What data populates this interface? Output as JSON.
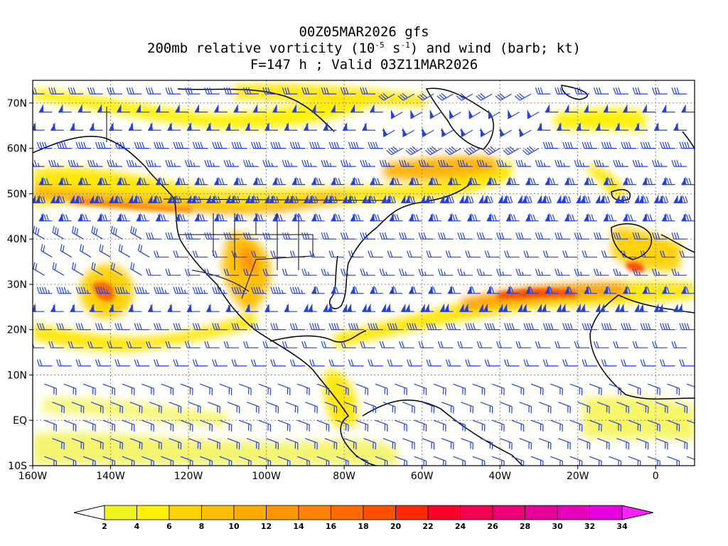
{
  "title": {
    "line1": "00Z05MAR2026 gfs",
    "line2_pre": "200mb relative vorticity (10",
    "line2_exp1": "-5",
    "line2_mid": " s",
    "line2_exp2": "-1",
    "line2_post": ") and wind (barb; kt)",
    "line3": "F=147 h ; Valid 03Z11MAR2026"
  },
  "axes": {
    "lat_labels": [
      "70N",
      "60N",
      "50N",
      "40N",
      "30N",
      "20N",
      "10N",
      "EQ",
      "10S"
    ],
    "lat_values": [
      70,
      60,
      50,
      40,
      30,
      20,
      10,
      0,
      -10
    ],
    "lon_labels": [
      "160W",
      "140W",
      "120W",
      "100W",
      "80W",
      "60W",
      "40W",
      "20W",
      "0"
    ],
    "lon_values": [
      -160,
      -140,
      -120,
      -100,
      -80,
      -60,
      -40,
      -20,
      0
    ]
  },
  "colorbar": {
    "labels": [
      "2",
      "4",
      "6",
      "8",
      "10",
      "12",
      "14",
      "16",
      "18",
      "20",
      "22",
      "24",
      "26",
      "28",
      "30",
      "32",
      "34"
    ],
    "colors": [
      "#f0f41e",
      "#fff000",
      "#ffd200",
      "#ffbe00",
      "#ffaa00",
      "#ff9600",
      "#ff8200",
      "#ff6a00",
      "#ff5000",
      "#ff2800",
      "#ff0028",
      "#f50050",
      "#ee0078",
      "#e8009a",
      "#e600be",
      "#e600e0",
      "#e600f8"
    ],
    "under_color": "#ffffff",
    "over_color": "#ff20ff"
  },
  "colors": {
    "barb": "#2040e8",
    "coast": "#000000",
    "grid": "#888888"
  }
}
